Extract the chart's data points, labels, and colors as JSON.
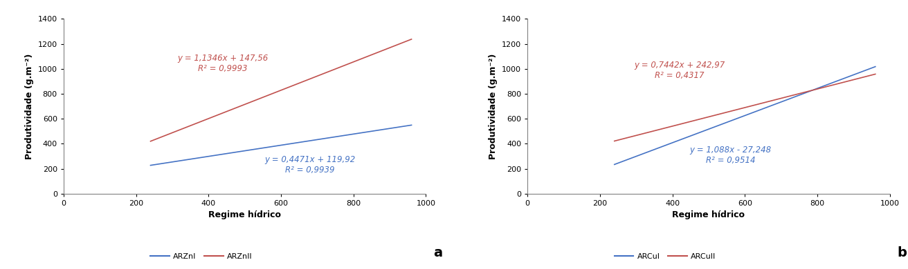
{
  "panel_a": {
    "line1": {
      "label": "ARZnI",
      "color": "#4472C4",
      "slope": 0.4471,
      "intercept": 119.92,
      "eq_text": "y = 0,4471x + 119,92",
      "r2_text": "R² = 0,9939",
      "eq_x": 680,
      "eq_y": 230,
      "x_start": 240,
      "x_end": 960
    },
    "line2": {
      "label": "ARZnII",
      "color": "#C0504D",
      "slope": 1.1346,
      "intercept": 147.56,
      "eq_text": "y = 1,1346x + 147,56",
      "r2_text": "R² = 0,9993",
      "eq_x": 440,
      "eq_y": 1040,
      "x_start": 240,
      "x_end": 960
    },
    "xlabel": "Regime hídrico",
    "ylabel": "Produtividade (g.m⁻²)",
    "xlim": [
      0,
      1000
    ],
    "ylim": [
      0,
      1400
    ],
    "xticks": [
      0,
      200,
      400,
      600,
      800,
      1000
    ],
    "yticks": [
      0,
      200,
      400,
      600,
      800,
      1000,
      1200,
      1400
    ],
    "panel_label": "a",
    "legend_labels": [
      "ARZnI",
      "ARZnII"
    ]
  },
  "panel_b": {
    "line1": {
      "label": "ARCuI",
      "color": "#4472C4",
      "slope": 1.088,
      "intercept": -27.248,
      "eq_text": "y = 1,088x - 27,248",
      "r2_text": "R² = 0,9514",
      "eq_x": 560,
      "eq_y": 310,
      "x_start": 240,
      "x_end": 960
    },
    "line2": {
      "label": "ARCuII",
      "color": "#C0504D",
      "slope": 0.7442,
      "intercept": 242.97,
      "eq_text": "y = 0,7442x + 242,97",
      "r2_text": "R² = 0,4317",
      "eq_x": 420,
      "eq_y": 990,
      "x_start": 240,
      "x_end": 960
    },
    "xlabel": "Regime hídrico",
    "ylabel": "Produtividade (g.m⁻²)",
    "xlim": [
      0,
      1000
    ],
    "ylim": [
      0,
      1400
    ],
    "xticks": [
      0,
      200,
      400,
      600,
      800,
      1000
    ],
    "yticks": [
      0,
      200,
      400,
      600,
      800,
      1000,
      1200,
      1400
    ],
    "panel_label": "b",
    "legend_labels": [
      "ARCuI",
      "ARCuII"
    ]
  },
  "bg_color": "#FFFFFF",
  "font_size_axis_label": 9,
  "font_size_tick": 8,
  "font_size_legend": 8,
  "font_size_eq": 8.5,
  "font_size_panel_label": 14
}
